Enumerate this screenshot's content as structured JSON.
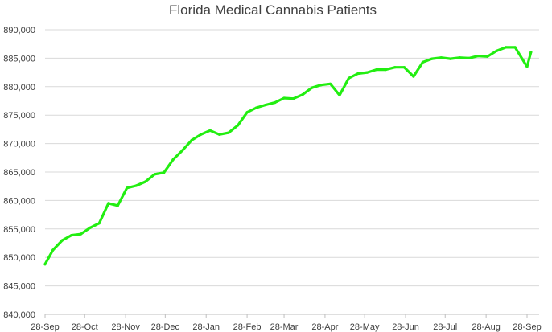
{
  "chart_data": {
    "type": "line",
    "title": "Florida Medical Cannabis Patients",
    "xlabel": "",
    "ylabel": "",
    "ylim": [
      840000,
      890000
    ],
    "grid": true,
    "legend": "none",
    "colors": {
      "line": "#22ee11",
      "grid": "#d9d9d9",
      "text": "#404040"
    },
    "y_ticks": [
      "840,000",
      "845,000",
      "850,000",
      "855,000",
      "860,000",
      "865,000",
      "870,000",
      "875,000",
      "880,000",
      "885,000",
      "890,000"
    ],
    "y_tick_values": [
      840000,
      845000,
      850000,
      855000,
      860000,
      865000,
      870000,
      875000,
      880000,
      885000,
      890000
    ],
    "x_ticks": [
      "28-Sep",
      "28-Oct",
      "28-Nov",
      "28-Dec",
      "28-Jan",
      "28-Feb",
      "28-Mar",
      "28-Apr",
      "28-May",
      "28-Jun",
      "28-Jul",
      "28-Aug",
      "28-Sep"
    ],
    "x_tick_dates": [
      "2021-09-28",
      "2021-10-28",
      "2021-11-28",
      "2021-12-28",
      "2022-01-28",
      "2022-02-28",
      "2022-03-28",
      "2022-04-28",
      "2022-05-28",
      "2022-06-28",
      "2022-07-28",
      "2022-08-28",
      "2022-09-28"
    ],
    "series": [
      {
        "x": [
          "2021-09-28",
          "2021-10-04",
          "2021-10-11",
          "2021-10-18",
          "2021-10-25",
          "2021-11-01",
          "2021-11-08",
          "2021-11-15",
          "2021-11-22",
          "2021-11-29",
          "2021-12-06",
          "2021-12-13",
          "2021-12-20",
          "2021-12-27",
          "2022-01-03",
          "2022-01-10",
          "2022-01-17",
          "2022-01-24",
          "2022-01-31",
          "2022-02-07",
          "2022-02-14",
          "2022-02-21",
          "2022-02-28",
          "2022-03-07",
          "2022-03-14",
          "2022-03-21",
          "2022-03-28",
          "2022-04-04",
          "2022-04-11",
          "2022-04-18",
          "2022-04-25",
          "2022-05-02",
          "2022-05-09",
          "2022-05-16",
          "2022-05-23",
          "2022-05-30",
          "2022-06-06",
          "2022-06-13",
          "2022-06-20",
          "2022-06-27",
          "2022-07-04",
          "2022-07-11",
          "2022-07-18",
          "2022-07-25",
          "2022-08-01",
          "2022-08-08",
          "2022-08-15",
          "2022-08-22",
          "2022-08-29",
          "2022-09-05",
          "2022-09-12",
          "2022-09-19",
          "2022-09-28"
        ],
        "values": [
          848800,
          851300,
          853000,
          853900,
          854100,
          855200,
          856000,
          859500,
          859100,
          862200,
          862600,
          863300,
          864600,
          864900,
          867200,
          868800,
          870600,
          871600,
          872300,
          871600,
          871900,
          873200,
          875500,
          876300,
          876800,
          877200,
          878000,
          877900,
          878600,
          879800,
          880300,
          880500,
          878500,
          881500,
          882300,
          882500,
          883000,
          883000,
          883400,
          883400,
          881800,
          884300,
          884900,
          885100,
          884900,
          885100,
          885000,
          885400,
          885300,
          886300,
          886900,
          886900,
          883500
        ]
      }
    ],
    "final_point": {
      "x": "2022-10-01",
      "y": 886100
    }
  }
}
